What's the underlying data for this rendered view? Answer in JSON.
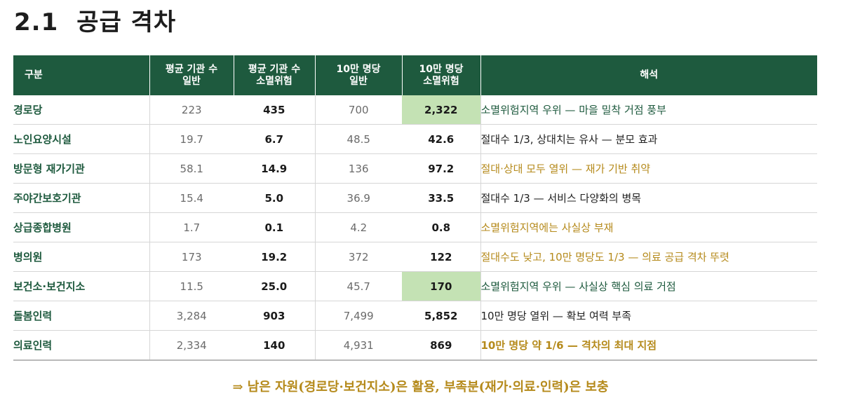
{
  "title": {
    "number": "2.1",
    "text": "공급 격차"
  },
  "table": {
    "headers": [
      {
        "line1": "구분",
        "line2": ""
      },
      {
        "line1": "평균 기관 수",
        "line2": "일반"
      },
      {
        "line1": "평균 기관 수",
        "line2": "소멸위험"
      },
      {
        "line1": "10만 명당",
        "line2": "일반"
      },
      {
        "line1": "10만 명당",
        "line2": "소멸위험"
      },
      {
        "line1": "해석",
        "line2": ""
      }
    ],
    "rows": [
      {
        "label": "경로당",
        "avg_general": "223",
        "avg_risk": "435",
        "per100k_general": "700",
        "per100k_risk": "2,322",
        "highlight": true,
        "note": "소멸위험지역 우위 — 마을 밀착 거점 풍부",
        "note_color": "green",
        "note_bold": false
      },
      {
        "label": "노인요양시설",
        "avg_general": "19.7",
        "avg_risk": "6.7",
        "per100k_general": "48.5",
        "per100k_risk": "42.6",
        "highlight": false,
        "note": "절대수 1/3, 상대치는 유사 — 분모 효과",
        "note_color": "black",
        "note_bold": false
      },
      {
        "label": "방문형 재가기관",
        "avg_general": "58.1",
        "avg_risk": "14.9",
        "per100k_general": "136",
        "per100k_risk": "97.2",
        "highlight": false,
        "note": "절대·상대 모두 열위 — 재가 기반 취약",
        "note_color": "orange",
        "note_bold": false
      },
      {
        "label": "주야간보호기관",
        "avg_general": "15.4",
        "avg_risk": "5.0",
        "per100k_general": "36.9",
        "per100k_risk": "33.5",
        "highlight": false,
        "note": "절대수 1/3 — 서비스 다양화의 병목",
        "note_color": "black",
        "note_bold": false
      },
      {
        "label": "상급종합병원",
        "avg_general": "1.7",
        "avg_risk": "0.1",
        "per100k_general": "4.2",
        "per100k_risk": "0.8",
        "highlight": false,
        "note": "소멸위험지역에는 사실상 부재",
        "note_color": "orange",
        "note_bold": false
      },
      {
        "label": "병의원",
        "avg_general": "173",
        "avg_risk": "19.2",
        "per100k_general": "372",
        "per100k_risk": "122",
        "highlight": false,
        "note": "절대수도 낮고, 10만 명당도 1/3 — 의료 공급 격차 뚜렷",
        "note_color": "orange",
        "note_bold": false
      },
      {
        "label": "보건소·보건지소",
        "avg_general": "11.5",
        "avg_risk": "25.0",
        "per100k_general": "45.7",
        "per100k_risk": "170",
        "highlight": true,
        "note": "소멸위험지역 우위 — 사실상 핵심 의료 거점",
        "note_color": "green",
        "note_bold": false
      },
      {
        "label": "돌봄인력",
        "avg_general": "3,284",
        "avg_risk": "903",
        "per100k_general": "7,499",
        "per100k_risk": "5,852",
        "highlight": false,
        "note": "10만 명당 열위 — 확보 여력 부족",
        "note_color": "black",
        "note_bold": false
      },
      {
        "label": "의료인력",
        "avg_general": "2,334",
        "avg_risk": "140",
        "per100k_general": "4,931",
        "per100k_risk": "869",
        "highlight": false,
        "note": "10만 명당 약 1/6 — 격차의 최대 지점",
        "note_color": "orange",
        "note_bold": true
      }
    ]
  },
  "conclusion": "⇒ 남은 자원(경로당·보건지소)은 활용, 부족분(재가·의료·인력)은 보충",
  "colors": {
    "header_bg": "#1e5a3e",
    "accent_green": "#1e5a3e",
    "accent_orange": "#b58a1b",
    "highlight_cell": "#c4e2b4"
  }
}
